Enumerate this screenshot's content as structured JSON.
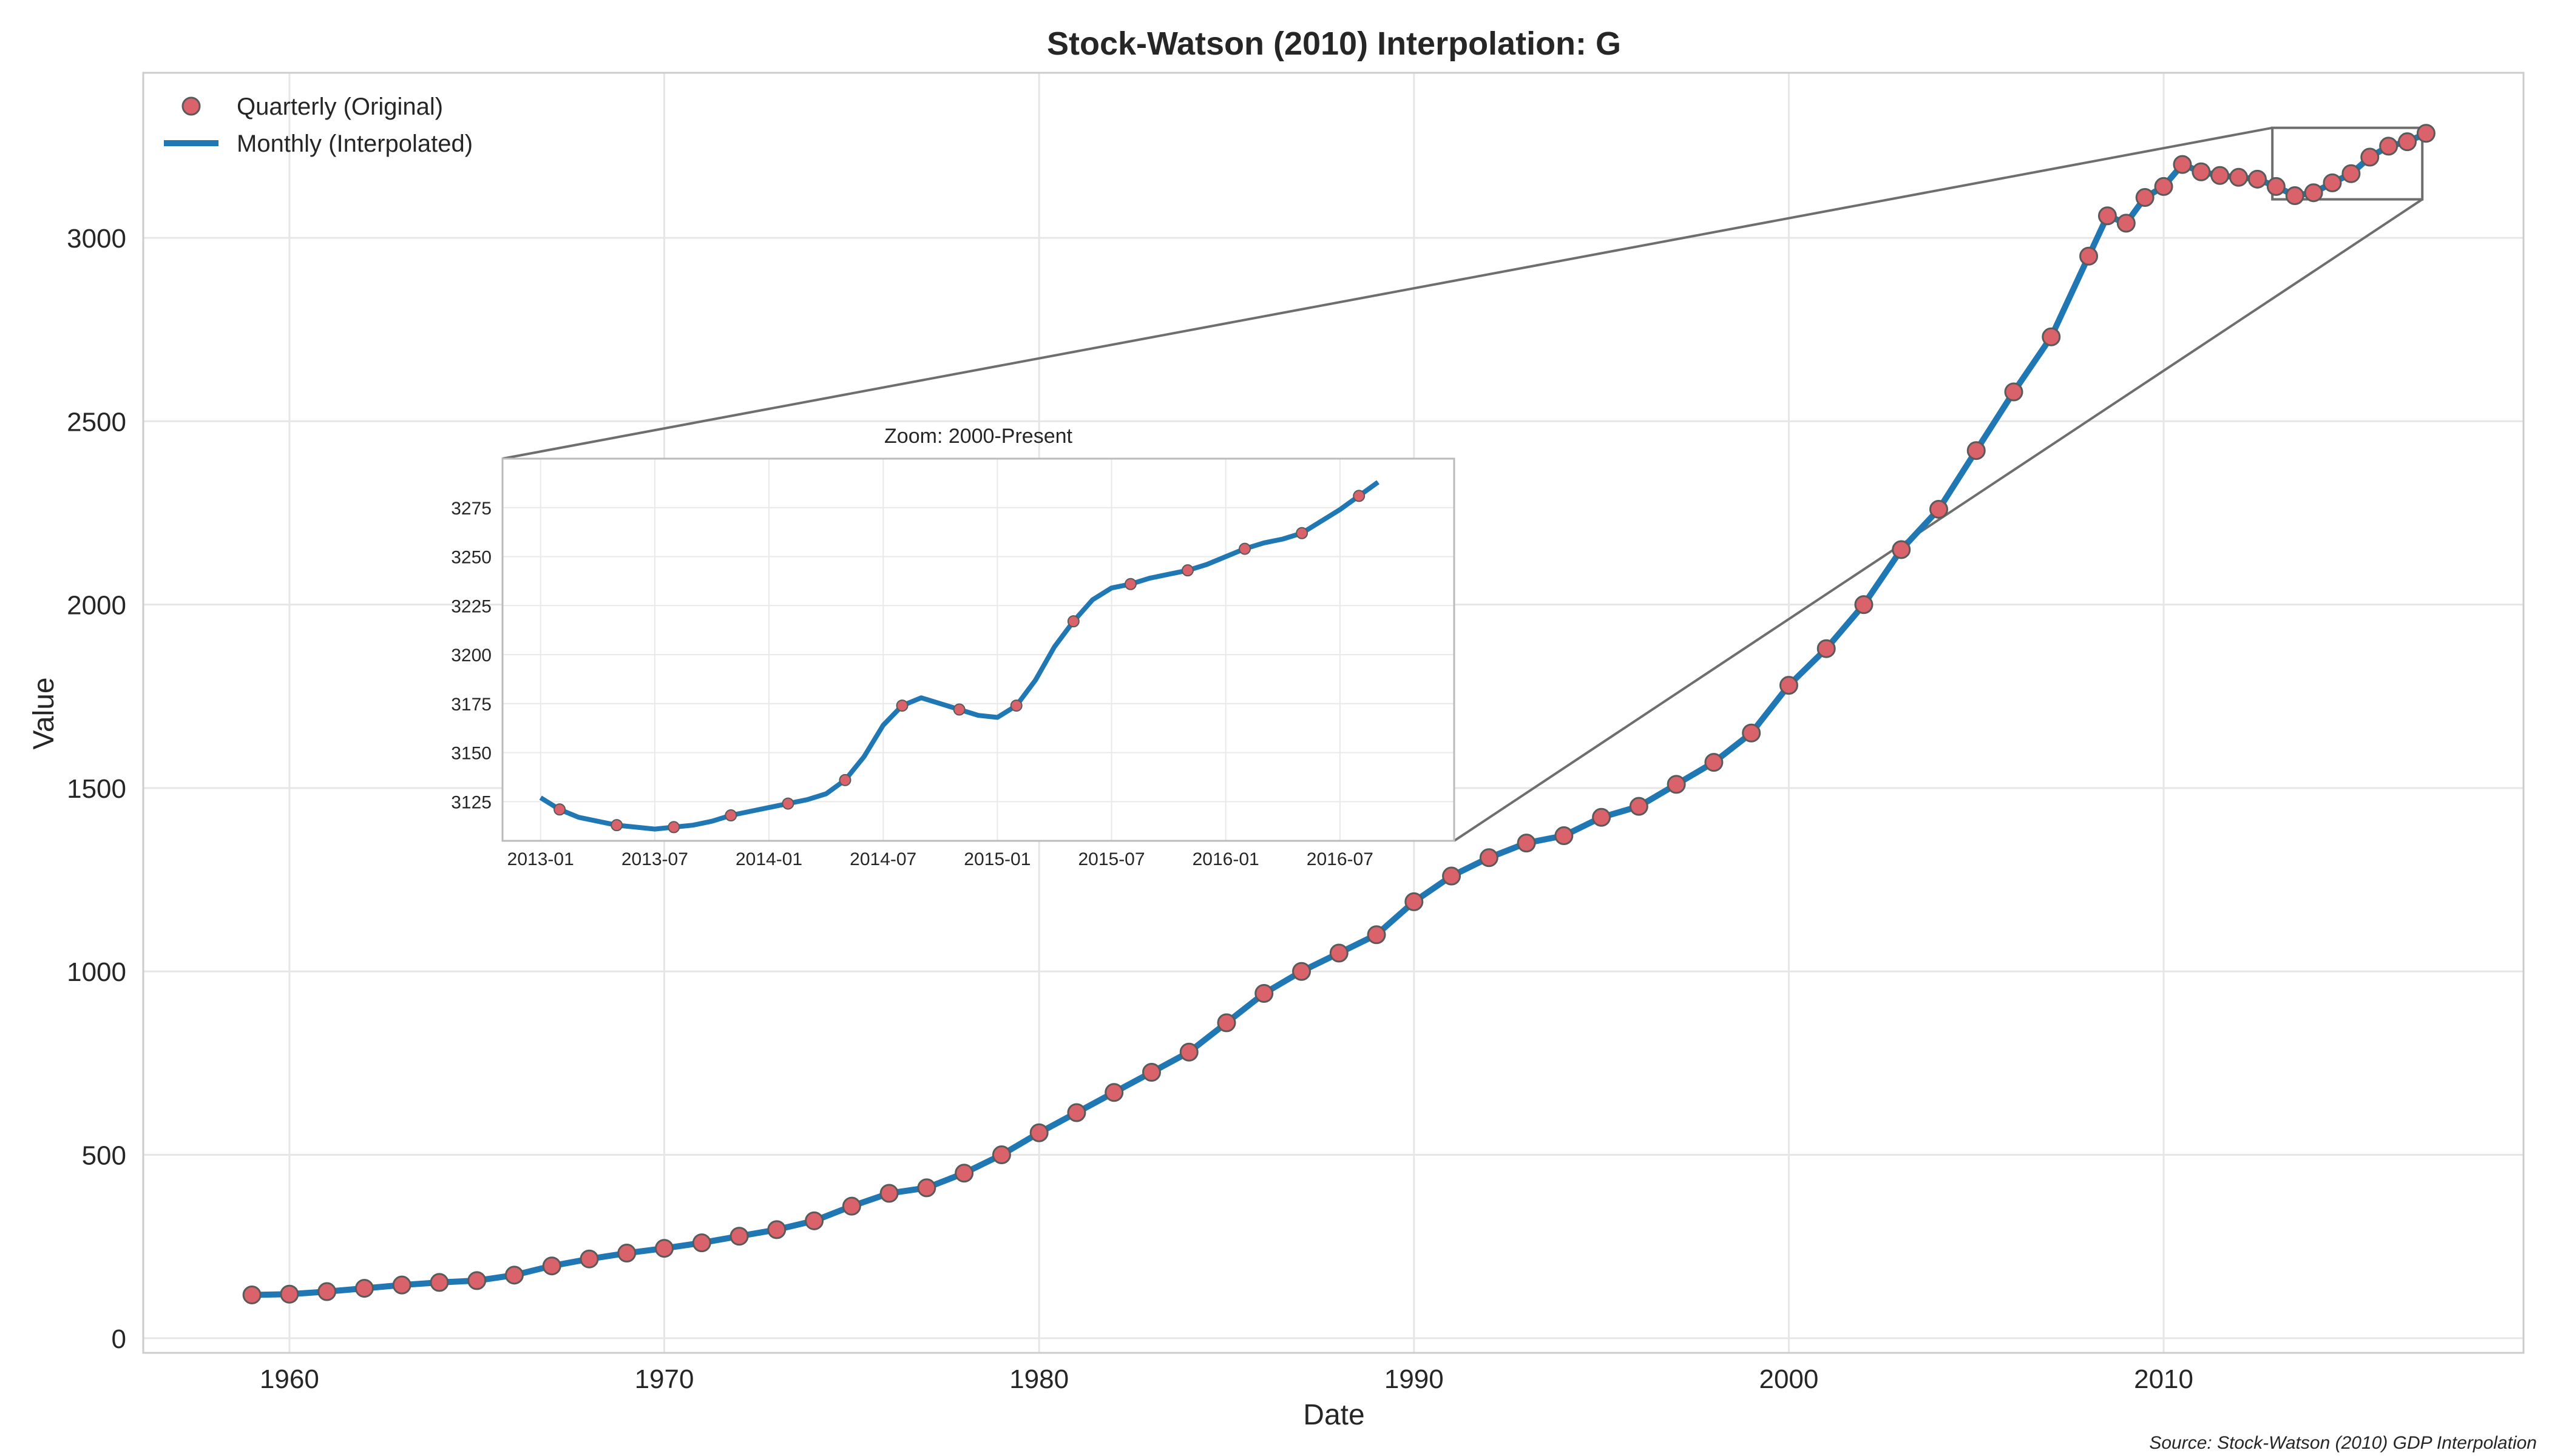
{
  "chart_data": {
    "type": "line",
    "title": "Stock-Watson (2010) Interpolation: G",
    "xlabel": "Date",
    "ylabel": "Value",
    "source_note": "Source: Stock-Watson (2010) GDP Interpolation",
    "x_ticks": [
      "1960",
      "1970",
      "1980",
      "1990",
      "2000",
      "2010"
    ],
    "y_ticks": [
      "0",
      "500",
      "1000",
      "1500",
      "2000",
      "2500",
      "3000"
    ],
    "xlim": [
      1956.1,
      2019.6
    ],
    "ylim": [
      -40,
      3450
    ],
    "grid": true,
    "legend_position": "top-left",
    "legend": [
      "Quarterly (Original)",
      "Monthly (Interpolated)"
    ],
    "series": [
      {
        "name": "Quarterly (Original)",
        "style": "markers",
        "color": "#d9626b",
        "edge_color": "#5a5a5a",
        "points": [
          [
            1959.0,
            118
          ],
          [
            1960.0,
            120
          ],
          [
            1961.0,
            127
          ],
          [
            1962.0,
            136
          ],
          [
            1963.0,
            145
          ],
          [
            1964.0,
            152
          ],
          [
            1965.0,
            157
          ],
          [
            1966.0,
            172
          ],
          [
            1967.0,
            197
          ],
          [
            1968.0,
            216
          ],
          [
            1969.0,
            232
          ],
          [
            1970.0,
            245
          ],
          [
            1971.0,
            260
          ],
          [
            1972.0,
            278
          ],
          [
            1973.0,
            296
          ],
          [
            1974.0,
            320
          ],
          [
            1975.0,
            360
          ],
          [
            1976.0,
            395
          ],
          [
            1977.0,
            410
          ],
          [
            1978.0,
            450
          ],
          [
            1979.0,
            500
          ],
          [
            1980.0,
            560
          ],
          [
            1981.0,
            615
          ],
          [
            1982.0,
            670
          ],
          [
            1983.0,
            725
          ],
          [
            1984.0,
            780
          ],
          [
            1985.0,
            860
          ],
          [
            1986.0,
            940
          ],
          [
            1987.0,
            1000
          ],
          [
            1988.0,
            1050
          ],
          [
            1989.0,
            1100
          ],
          [
            1990.0,
            1190
          ],
          [
            1991.0,
            1260
          ],
          [
            1992.0,
            1310
          ],
          [
            1993.0,
            1350
          ],
          [
            1994.0,
            1370
          ],
          [
            1995.0,
            1420
          ],
          [
            1996.0,
            1450
          ],
          [
            1997.0,
            1510
          ],
          [
            1998.0,
            1570
          ],
          [
            1999.0,
            1650
          ],
          [
            2000.0,
            1780
          ],
          [
            2001.0,
            1880
          ],
          [
            2002.0,
            2000
          ],
          [
            2003.0,
            2150
          ],
          [
            2004.0,
            2260
          ],
          [
            2005.0,
            2420
          ],
          [
            2006.0,
            2580
          ],
          [
            2007.0,
            2730
          ],
          [
            2008.0,
            2950
          ],
          [
            2008.5,
            3060
          ],
          [
            2009.0,
            3040
          ],
          [
            2009.5,
            3110
          ],
          [
            2010.0,
            3140
          ],
          [
            2010.5,
            3200
          ],
          [
            2011.0,
            3180
          ],
          [
            2011.5,
            3170
          ],
          [
            2012.0,
            3165
          ],
          [
            2012.5,
            3160
          ],
          [
            2013.0,
            3140
          ],
          [
            2013.5,
            3115
          ],
          [
            2014.0,
            3123
          ],
          [
            2014.5,
            3150
          ],
          [
            2015.0,
            3175
          ],
          [
            2015.5,
            3220
          ],
          [
            2016.0,
            3250
          ],
          [
            2016.5,
            3262
          ],
          [
            2017.0,
            3285
          ]
        ]
      },
      {
        "name": "Monthly (Interpolated)",
        "style": "line",
        "color": "#1f77b4",
        "points": [
          [
            1959.0,
            118
          ],
          [
            1960.0,
            120
          ],
          [
            1961.0,
            127
          ],
          [
            1962.0,
            136
          ],
          [
            1963.0,
            145
          ],
          [
            1964.0,
            152
          ],
          [
            1965.0,
            157
          ],
          [
            1966.0,
            172
          ],
          [
            1967.0,
            197
          ],
          [
            1968.0,
            216
          ],
          [
            1969.0,
            232
          ],
          [
            1970.0,
            245
          ],
          [
            1971.0,
            260
          ],
          [
            1972.0,
            278
          ],
          [
            1973.0,
            296
          ],
          [
            1974.0,
            320
          ],
          [
            1975.0,
            360
          ],
          [
            1976.0,
            395
          ],
          [
            1977.0,
            410
          ],
          [
            1978.0,
            450
          ],
          [
            1979.0,
            500
          ],
          [
            1980.0,
            560
          ],
          [
            1981.0,
            615
          ],
          [
            1982.0,
            670
          ],
          [
            1983.0,
            725
          ],
          [
            1984.0,
            780
          ],
          [
            1985.0,
            860
          ],
          [
            1986.0,
            940
          ],
          [
            1987.0,
            1000
          ],
          [
            1988.0,
            1050
          ],
          [
            1989.0,
            1100
          ],
          [
            1990.0,
            1190
          ],
          [
            1991.0,
            1260
          ],
          [
            1992.0,
            1310
          ],
          [
            1993.0,
            1350
          ],
          [
            1994.0,
            1370
          ],
          [
            1995.0,
            1420
          ],
          [
            1996.0,
            1450
          ],
          [
            1997.0,
            1510
          ],
          [
            1998.0,
            1570
          ],
          [
            1999.0,
            1650
          ],
          [
            2000.0,
            1780
          ],
          [
            2001.0,
            1880
          ],
          [
            2002.0,
            2000
          ],
          [
            2003.0,
            2150
          ],
          [
            2004.0,
            2260
          ],
          [
            2005.0,
            2420
          ],
          [
            2006.0,
            2580
          ],
          [
            2007.0,
            2730
          ],
          [
            2008.0,
            2950
          ],
          [
            2008.5,
            3060
          ],
          [
            2009.0,
            3040
          ],
          [
            2009.5,
            3110
          ],
          [
            2010.0,
            3140
          ],
          [
            2010.5,
            3200
          ],
          [
            2011.0,
            3180
          ],
          [
            2011.5,
            3170
          ],
          [
            2012.0,
            3165
          ],
          [
            2012.5,
            3160
          ],
          [
            2013.0,
            3140
          ],
          [
            2013.5,
            3115
          ],
          [
            2014.0,
            3123
          ],
          [
            2014.5,
            3150
          ],
          [
            2015.0,
            3175
          ],
          [
            2015.5,
            3220
          ],
          [
            2016.0,
            3250
          ],
          [
            2016.5,
            3262
          ],
          [
            2017.0,
            3285
          ]
        ]
      }
    ],
    "zoom_box": {
      "x_range": [
        2012.9,
        2016.9
      ],
      "y_range": [
        3105,
        3300
      ]
    },
    "inset": {
      "title": "Zoom: 2000-Present",
      "x_ticks": [
        "2013-01",
        "2013-07",
        "2014-01",
        "2014-07",
        "2015-01",
        "2015-07",
        "2016-01",
        "2016-07"
      ],
      "y_ticks": [
        "3125",
        "3150",
        "3175",
        "3200",
        "3225",
        "3250",
        "3275"
      ],
      "xlim": [
        "2012-11",
        "2017-01"
      ],
      "ylim": [
        3105,
        3300
      ],
      "grid": true,
      "quarterly": [
        [
          "2013-02",
          3121
        ],
        [
          "2013-05",
          3113
        ],
        [
          "2013-08",
          3112
        ],
        [
          "2013-11",
          3118
        ],
        [
          "2014-02",
          3124
        ],
        [
          "2014-05",
          3136
        ],
        [
          "2014-08",
          3174
        ],
        [
          "2014-11",
          3172
        ],
        [
          "2015-02",
          3174
        ],
        [
          "2015-05",
          3217
        ],
        [
          "2015-08",
          3236
        ],
        [
          "2015-11",
          3243
        ],
        [
          "2016-02",
          3254
        ],
        [
          "2016-05",
          3262
        ],
        [
          "2016-08",
          3281
        ]
      ],
      "monthly": [
        [
          "2013-01",
          3127
        ],
        [
          "2013-02",
          3121
        ],
        [
          "2013-03",
          3117
        ],
        [
          "2013-04",
          3115
        ],
        [
          "2013-05",
          3113
        ],
        [
          "2013-06",
          3112
        ],
        [
          "2013-07",
          3111
        ],
        [
          "2013-08",
          3112
        ],
        [
          "2013-09",
          3113
        ],
        [
          "2013-10",
          3115
        ],
        [
          "2013-11",
          3118
        ],
        [
          "2013-12",
          3120
        ],
        [
          "2014-01",
          3122
        ],
        [
          "2014-02",
          3124
        ],
        [
          "2014-03",
          3126
        ],
        [
          "2014-04",
          3129
        ],
        [
          "2014-05",
          3136
        ],
        [
          "2014-06",
          3148
        ],
        [
          "2014-07",
          3164
        ],
        [
          "2014-08",
          3174
        ],
        [
          "2014-09",
          3178
        ],
        [
          "2014-10",
          3175
        ],
        [
          "2014-11",
          3172
        ],
        [
          "2014-12",
          3169
        ],
        [
          "2015-01",
          3168
        ],
        [
          "2015-02",
          3174
        ],
        [
          "2015-03",
          3187
        ],
        [
          "2015-04",
          3204
        ],
        [
          "2015-05",
          3217
        ],
        [
          "2015-06",
          3228
        ],
        [
          "2015-07",
          3234
        ],
        [
          "2015-08",
          3236
        ],
        [
          "2015-09",
          3239
        ],
        [
          "2015-10",
          3241
        ],
        [
          "2015-11",
          3243
        ],
        [
          "2015-12",
          3246
        ],
        [
          "2016-01",
          3250
        ],
        [
          "2016-02",
          3254
        ],
        [
          "2016-03",
          3257
        ],
        [
          "2016-04",
          3259
        ],
        [
          "2016-05",
          3262
        ],
        [
          "2016-06",
          3268
        ],
        [
          "2016-07",
          3274
        ],
        [
          "2016-08",
          3281
        ],
        [
          "2016-09",
          3288
        ]
      ]
    }
  }
}
